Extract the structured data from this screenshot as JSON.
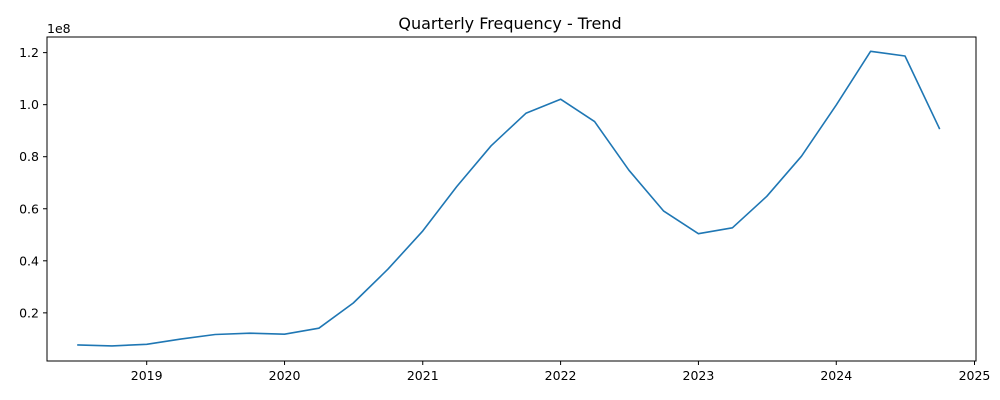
{
  "chart_data": {
    "type": "line",
    "title": "Quarterly Frequency - Trend",
    "xlabel": "",
    "ylabel": "",
    "y_exponent_label": "1e8",
    "x_ticks": [
      "2019",
      "2020",
      "2021",
      "2022",
      "2023",
      "2024",
      "2025"
    ],
    "y_ticks": [
      "0.2",
      "0.4",
      "0.6",
      "0.8",
      "1.0",
      "1.2"
    ],
    "xlim": [
      "2018-04-12",
      "2025-01-05"
    ],
    "ylim": [
      0.015,
      1.26
    ],
    "grid": false,
    "legend": "none",
    "series": [
      {
        "color": "#1f77b4",
        "x": [
          "2018-07-01",
          "2018-10-01",
          "2019-01-01",
          "2019-04-01",
          "2019-07-01",
          "2019-10-01",
          "2020-01-01",
          "2020-04-01",
          "2020-07-01",
          "2020-10-01",
          "2021-01-01",
          "2021-04-01",
          "2021-07-01",
          "2021-10-01",
          "2022-01-01",
          "2022-04-01",
          "2022-07-01",
          "2022-10-01",
          "2023-01-01",
          "2023-04-01",
          "2023-07-01",
          "2023-10-01",
          "2024-01-01",
          "2024-04-01",
          "2024-07-01",
          "2024-10-01"
        ],
        "values": [
          0.077,
          0.073,
          0.079,
          0.099,
          0.117,
          0.122,
          0.118,
          0.141,
          0.238,
          0.368,
          0.515,
          0.685,
          0.842,
          0.967,
          1.021,
          0.935,
          0.748,
          0.591,
          0.504,
          0.527,
          0.648,
          0.802,
          0.999,
          1.205,
          1.187,
          0.906
        ]
      }
    ]
  }
}
